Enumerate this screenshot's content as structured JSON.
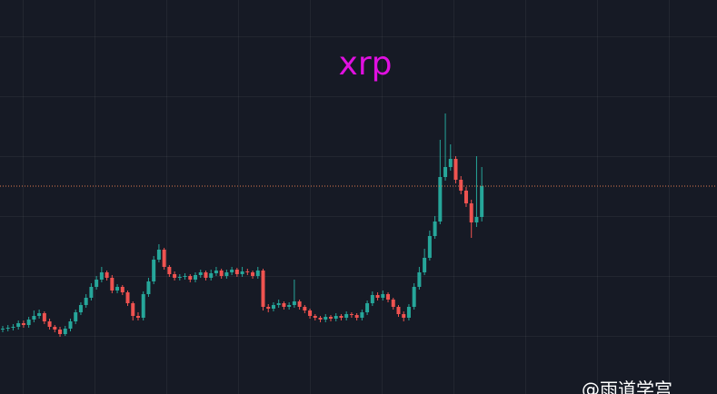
{
  "chart_data": {
    "type": "candlestick",
    "title": "xrp",
    "watermark": "@雨道学宫",
    "up_color": "#26a69a",
    "down_color": "#ef5350",
    "price_line_color": "#e07a4f",
    "ylim": [
      0,
      434
    ],
    "open": [
      71,
      72,
      73,
      74,
      78,
      76,
      82,
      86,
      89,
      80,
      74,
      71,
      66,
      72,
      80,
      90,
      98,
      106,
      118,
      126,
      134,
      128,
      114,
      118,
      112,
      100,
      86,
      84,
      110,
      124,
      148,
      159,
      140,
      132,
      128,
      129,
      130,
      126,
      131,
      134,
      128,
      133,
      136,
      130,
      134,
      137,
      132,
      135,
      134,
      130,
      136,
      96,
      94,
      98,
      100,
      96,
      98,
      102,
      96,
      92,
      86,
      84,
      82,
      85,
      83,
      86,
      84,
      88,
      87,
      84,
      90,
      100,
      109,
      106,
      110,
      104,
      96,
      88,
      84,
      96,
      118,
      134,
      150,
      174,
      190,
      239,
      250,
      259,
      236,
      224,
      210,
      189,
      195
    ],
    "high": [
      75,
      76,
      77,
      81,
      81,
      85,
      92,
      93,
      91,
      83,
      76,
      74,
      75,
      83,
      93,
      101,
      110,
      122,
      130,
      140,
      136,
      131,
      121,
      120,
      114,
      102,
      90,
      113,
      128,
      152,
      165,
      161,
      142,
      135,
      132,
      133,
      132,
      134,
      137,
      136,
      137,
      140,
      138,
      137,
      140,
      139,
      140,
      138,
      136,
      140,
      138,
      99,
      101,
      104,
      102,
      101,
      126,
      104,
      98,
      94,
      88,
      86,
      88,
      87,
      89,
      88,
      91,
      90,
      89,
      93,
      103,
      113,
      112,
      114,
      112,
      106,
      98,
      91,
      99,
      122,
      140,
      160,
      180,
      196,
      280,
      309,
      275,
      262,
      240,
      228,
      214,
      262,
      250
    ],
    "low": [
      68,
      69,
      70,
      71,
      73,
      73,
      79,
      83,
      77,
      71,
      68,
      63,
      64,
      69,
      77,
      87,
      95,
      103,
      115,
      123,
      125,
      111,
      111,
      109,
      97,
      81,
      81,
      81,
      107,
      121,
      145,
      137,
      129,
      125,
      125,
      126,
      123,
      123,
      128,
      125,
      125,
      130,
      127,
      127,
      131,
      129,
      129,
      131,
      127,
      127,
      92,
      90,
      91,
      95,
      93,
      93,
      95,
      93,
      89,
      83,
      81,
      79,
      79,
      80,
      80,
      81,
      81,
      84,
      81,
      81,
      87,
      97,
      103,
      103,
      101,
      93,
      85,
      80,
      81,
      93,
      115,
      131,
      147,
      171,
      187,
      235,
      246,
      232,
      220,
      206,
      172,
      184,
      190
    ],
    "close": [
      72,
      73,
      74,
      78,
      76,
      82,
      86,
      89,
      80,
      74,
      71,
      66,
      72,
      80,
      90,
      98,
      106,
      118,
      126,
      134,
      128,
      114,
      118,
      112,
      100,
      86,
      84,
      110,
      124,
      148,
      159,
      140,
      132,
      128,
      129,
      130,
      126,
      131,
      134,
      128,
      133,
      136,
      130,
      134,
      137,
      132,
      135,
      134,
      130,
      136,
      96,
      94,
      98,
      100,
      96,
      98,
      102,
      96,
      92,
      86,
      84,
      82,
      85,
      83,
      86,
      84,
      88,
      87,
      84,
      90,
      100,
      109,
      106,
      110,
      104,
      96,
      88,
      84,
      96,
      118,
      134,
      150,
      174,
      190,
      239,
      250,
      259,
      236,
      224,
      210,
      189,
      195,
      229
    ]
  }
}
